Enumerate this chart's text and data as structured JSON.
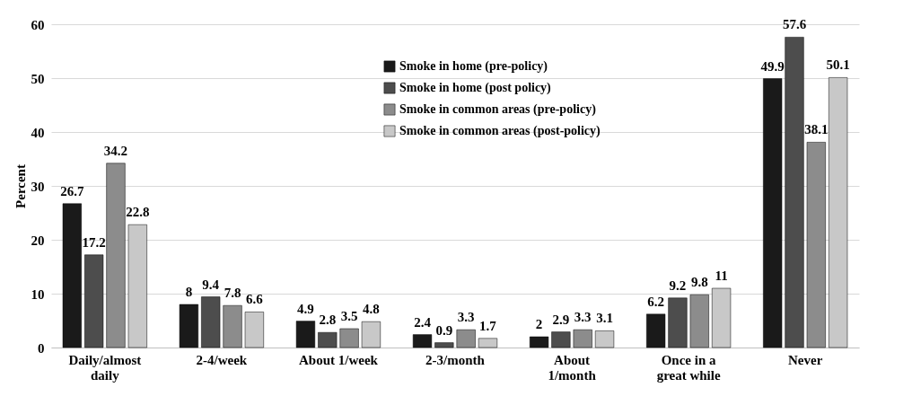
{
  "chart_data": {
    "type": "bar",
    "ylabel": "Percent",
    "categories": [
      "Daily/almost daily",
      "2-4/week",
      "About 1/week",
      "2-3/month",
      "About 1/month",
      "Once in a great while",
      "Never"
    ],
    "series": [
      {
        "name": "Smoke in home (pre-policy)",
        "color": "#1a1a1a",
        "values": [
          26.7,
          8,
          4.9,
          2.4,
          2,
          6.2,
          49.9
        ]
      },
      {
        "name": "Smoke in home (post policy)",
        "color": "#4d4d4d",
        "values": [
          17.2,
          9.4,
          2.8,
          0.9,
          2.9,
          9.2,
          57.6
        ]
      },
      {
        "name": "Smoke in common areas (pre-policy)",
        "color": "#8c8c8c",
        "values": [
          34.2,
          7.8,
          3.5,
          3.3,
          3.3,
          9.8,
          38.1
        ]
      },
      {
        "name": "Smoke in common areas (post-policy)",
        "color": "#c8c8c8",
        "values": [
          22.8,
          6.6,
          4.8,
          1.7,
          3.1,
          11,
          50.1
        ]
      }
    ],
    "ylim": [
      0,
      60
    ],
    "yticks": [
      0,
      10,
      20,
      30,
      40,
      50,
      60
    ],
    "grid": "y",
    "legend": "top",
    "data_labels": true
  }
}
